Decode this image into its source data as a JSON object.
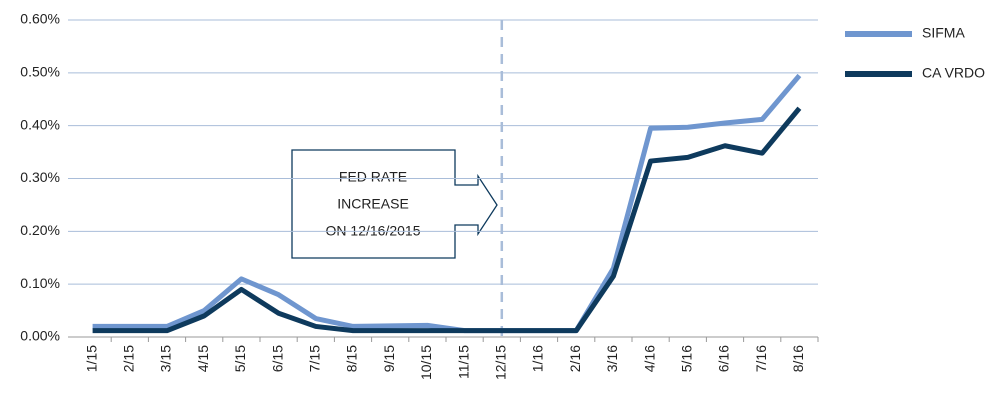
{
  "chart_data": {
    "type": "line",
    "categories": [
      "1/15",
      "2/15",
      "3/15",
      "4/15",
      "5/15",
      "6/15",
      "7/15",
      "8/15",
      "9/15",
      "10/15",
      "11/15",
      "12/15",
      "1/16",
      "2/16",
      "3/16",
      "4/16",
      "5/16",
      "6/16",
      "7/16",
      "8/16"
    ],
    "series": [
      {
        "name": "SIFMA",
        "color": "#6f96cf",
        "values": [
          0.02,
          0.02,
          0.02,
          0.05,
          0.11,
          0.08,
          0.035,
          0.02,
          0.021,
          0.022,
          0.012,
          0.012,
          0.012,
          0.012,
          0.13,
          0.395,
          0.397,
          0.405,
          0.412,
          0.495
        ]
      },
      {
        "name": "CA VRDO",
        "color": "#0e3a5d",
        "values": [
          0.012,
          0.012,
          0.012,
          0.04,
          0.09,
          0.045,
          0.02,
          0.012,
          0.012,
          0.012,
          0.012,
          0.012,
          0.012,
          0.012,
          0.115,
          0.333,
          0.34,
          0.362,
          0.348,
          0.433
        ]
      }
    ],
    "ylim": [
      0,
      0.6
    ],
    "yticks": [
      {
        "value": 0,
        "label": "0.00%"
      },
      {
        "value": 0.1,
        "label": "0.10%"
      },
      {
        "value": 0.2,
        "label": "0.20%"
      },
      {
        "value": 0.3,
        "label": "0.30%"
      },
      {
        "value": 0.4,
        "label": "0.40%"
      },
      {
        "value": 0.5,
        "label": "0.50%"
      },
      {
        "value": 0.6,
        "label": "0.60%"
      }
    ],
    "grid": true,
    "legend": "right",
    "annotation": [
      "FED RATE",
      "INCREASE",
      "ON 12/16/2015"
    ]
  }
}
